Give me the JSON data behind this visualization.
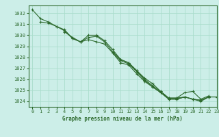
{
  "title": "Graphe pression niveau de la mer (hPa)",
  "background_color": "#cceee8",
  "grid_color": "#aaddcc",
  "line_color": "#2d6a2d",
  "marker_color": "#2d6a2d",
  "xlim": [
    -0.5,
    23
  ],
  "ylim": [
    1023.5,
    1032.7
  ],
  "yticks": [
    1024,
    1025,
    1026,
    1027,
    1028,
    1029,
    1030,
    1031,
    1032
  ],
  "xticks": [
    0,
    1,
    2,
    3,
    4,
    5,
    6,
    7,
    8,
    9,
    10,
    11,
    12,
    13,
    14,
    15,
    16,
    17,
    18,
    19,
    20,
    21,
    22,
    23
  ],
  "series": [
    [
      1032.3,
      1031.5,
      1031.2,
      1030.8,
      1030.4,
      1029.7,
      1029.4,
      1029.8,
      1029.9,
      1029.4,
      1028.5,
      1027.8,
      1027.5,
      1026.8,
      1026.1,
      1025.6,
      1024.9,
      1024.3,
      1024.3,
      1024.4,
      1024.2,
      1024.1,
      1024.4,
      null
    ],
    [
      null,
      1031.2,
      1031.1,
      1030.8,
      1030.5,
      1029.7,
      1029.4,
      1030.0,
      1030.0,
      1029.5,
      1028.7,
      1027.8,
      1027.5,
      1026.8,
      1026.0,
      1025.4,
      1024.9,
      1024.3,
      1024.3,
      1024.8,
      1024.9,
      1024.2,
      1024.5,
      null
    ],
    [
      null,
      null,
      null,
      null,
      1030.3,
      1029.8,
      1029.4,
      1029.6,
      1029.4,
      1029.2,
      1028.4,
      1027.5,
      1027.3,
      1026.5,
      1025.8,
      1025.3,
      1024.8,
      1024.2,
      1024.2,
      1024.4,
      1024.2,
      1024.0,
      1024.4,
      1024.4
    ],
    [
      null,
      null,
      null,
      null,
      null,
      null,
      null,
      null,
      null,
      null,
      1028.4,
      1027.7,
      1027.4,
      1026.7,
      1025.9,
      1025.3,
      1024.8,
      1024.2,
      1024.2,
      1024.4,
      1024.2,
      1024.1,
      1024.4,
      1024.4
    ]
  ]
}
